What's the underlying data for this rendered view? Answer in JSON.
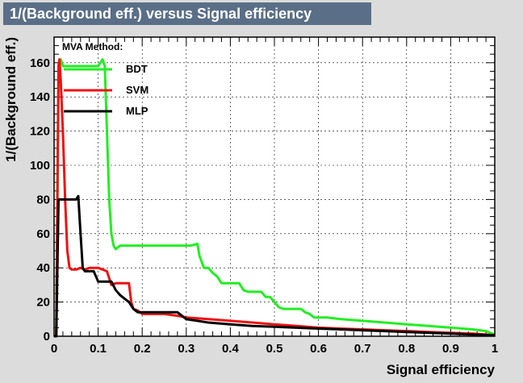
{
  "title": "1/(Background eff.) versus Signal efficiency",
  "chart_data": {
    "type": "line",
    "title": "1/(Background eff.) versus Signal efficiency",
    "xlabel": "Signal efficiency",
    "ylabel": "1/(Background eff.)",
    "xlim": [
      0,
      1
    ],
    "ylim": [
      0,
      175
    ],
    "xticks": [
      0,
      0.1,
      0.2,
      0.3,
      0.4,
      0.5,
      0.6,
      0.7,
      0.8,
      0.9,
      1
    ],
    "xtick_labels": [
      "0",
      "0.1",
      "0.2",
      "0.3",
      "0.4",
      "0.5",
      "0.6",
      "0.7",
      "0.8",
      "0.9",
      "1"
    ],
    "yticks": [
      0,
      20,
      40,
      60,
      80,
      100,
      120,
      140,
      160
    ],
    "ytick_labels": [
      "0",
      "20",
      "40",
      "60",
      "80",
      "100",
      "120",
      "140",
      "160"
    ],
    "grid": true,
    "legend": {
      "title": "MVA Method:",
      "placement": "top-left"
    },
    "series": [
      {
        "name": "BDT",
        "color": "#22ee22",
        "x": [
          0.0,
          0.005,
          0.01,
          0.015,
          0.02,
          0.05,
          0.1,
          0.11,
          0.115,
          0.12,
          0.125,
          0.13,
          0.135,
          0.14,
          0.15,
          0.2,
          0.25,
          0.31,
          0.325,
          0.33,
          0.34,
          0.35,
          0.36,
          0.37,
          0.38,
          0.4,
          0.42,
          0.43,
          0.44,
          0.47,
          0.48,
          0.49,
          0.5,
          0.51,
          0.52,
          0.56,
          0.57,
          0.58,
          0.59,
          0.62,
          0.65,
          0.7,
          0.75,
          0.8,
          0.85,
          0.9,
          0.95,
          0.98,
          1.0
        ],
        "y": [
          0,
          0,
          155,
          162,
          158,
          158,
          158,
          162,
          158,
          120,
          80,
          60,
          53,
          51,
          53,
          53,
          53,
          53,
          54,
          47,
          40,
          40,
          37,
          35,
          31,
          31,
          31,
          27,
          26,
          26,
          23,
          23,
          20,
          17,
          16,
          16,
          14,
          13,
          11,
          11,
          10,
          9,
          8,
          7,
          6,
          5,
          4,
          3,
          1
        ]
      },
      {
        "name": "SVM",
        "color": "#ee1111",
        "x": [
          0.0,
          0.005,
          0.01,
          0.012,
          0.015,
          0.02,
          0.025,
          0.03,
          0.035,
          0.04,
          0.05,
          0.06,
          0.07,
          0.08,
          0.1,
          0.12,
          0.13,
          0.14,
          0.17,
          0.175,
          0.18,
          0.19,
          0.2,
          0.25,
          0.28,
          0.3,
          0.35,
          0.4,
          0.45,
          0.5,
          0.55,
          0.6,
          0.65,
          0.7,
          0.75,
          0.8,
          0.85,
          0.9,
          0.95,
          0.98,
          1.0
        ],
        "y": [
          0,
          0,
          158,
          162,
          150,
          120,
          80,
          50,
          40,
          39,
          39,
          40,
          39,
          40,
          40,
          38,
          30,
          31,
          31,
          20,
          16,
          15,
          13,
          13,
          12,
          11,
          10,
          9,
          8,
          7,
          6,
          5,
          4.5,
          4,
          3.5,
          3,
          2.5,
          2,
          1.5,
          1,
          0.5
        ]
      },
      {
        "name": "MLP",
        "color": "#000000",
        "x": [
          0.0,
          0.005,
          0.01,
          0.03,
          0.05,
          0.055,
          0.06,
          0.065,
          0.07,
          0.08,
          0.09,
          0.095,
          0.1,
          0.11,
          0.13,
          0.14,
          0.15,
          0.16,
          0.17,
          0.18,
          0.19,
          0.2,
          0.25,
          0.28,
          0.3,
          0.35,
          0.4,
          0.45,
          0.5,
          0.55,
          0.6,
          0.65,
          0.7,
          0.75,
          0.8,
          0.85,
          0.9,
          0.95,
          1.0
        ],
        "y": [
          0,
          0,
          80,
          80,
          80,
          82,
          60,
          40,
          38,
          38,
          38,
          35,
          32,
          32,
          32,
          27,
          24,
          22,
          20,
          16,
          14,
          14,
          14,
          14,
          10,
          8,
          7,
          6,
          5.5,
          5,
          4.5,
          4,
          3.5,
          3,
          2.5,
          2,
          1.5,
          1,
          0.5
        ]
      }
    ]
  }
}
